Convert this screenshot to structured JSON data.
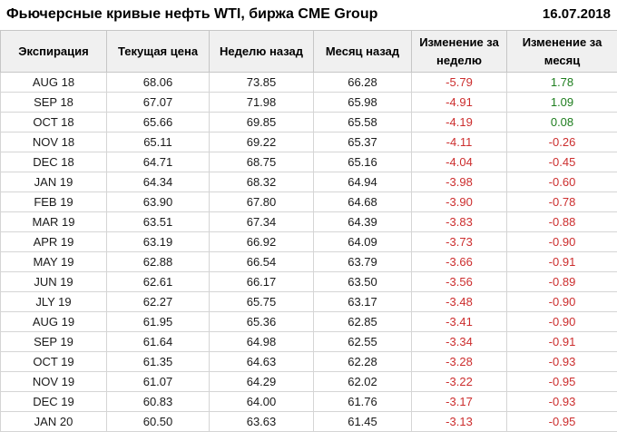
{
  "colors": {
    "positive": "#1e7d1e",
    "negative": "#cc2e2e",
    "header_bg": "#f0f0f0",
    "border": "#c6c6c6",
    "row_border": "#d5d5d5",
    "text": "#1a1a1a"
  },
  "chart_data": {
    "type": "table",
    "title": "Фьючерсные кривые нефть WTI, биржа CME Group",
    "date": "16.07.2018",
    "columns": [
      "Экспирация",
      "Текущая цена",
      "Неделю назад",
      "Месяц назад",
      "Изменение за неделю",
      "Изменение за месяц"
    ],
    "cell_names": [
      "cell-expiration",
      "cell-current-price",
      "cell-week-ago",
      "cell-month-ago",
      "cell-week-change",
      "cell-month-change"
    ],
    "change_columns": [
      4,
      5
    ],
    "rows": [
      [
        "AUG 18",
        "68.06",
        "73.85",
        "66.28",
        "-5.79",
        "1.78"
      ],
      [
        "SEP 18",
        "67.07",
        "71.98",
        "65.98",
        "-4.91",
        "1.09"
      ],
      [
        "OCT 18",
        "65.66",
        "69.85",
        "65.58",
        "-4.19",
        "0.08"
      ],
      [
        "NOV 18",
        "65.11",
        "69.22",
        "65.37",
        "-4.11",
        "-0.26"
      ],
      [
        "DEC 18",
        "64.71",
        "68.75",
        "65.16",
        "-4.04",
        "-0.45"
      ],
      [
        "JAN 19",
        "64.34",
        "68.32",
        "64.94",
        "-3.98",
        "-0.60"
      ],
      [
        "FEB 19",
        "63.90",
        "67.80",
        "64.68",
        "-3.90",
        "-0.78"
      ],
      [
        "MAR 19",
        "63.51",
        "67.34",
        "64.39",
        "-3.83",
        "-0.88"
      ],
      [
        "APR 19",
        "63.19",
        "66.92",
        "64.09",
        "-3.73",
        "-0.90"
      ],
      [
        "MAY 19",
        "62.88",
        "66.54",
        "63.79",
        "-3.66",
        "-0.91"
      ],
      [
        "JUN 19",
        "62.61",
        "66.17",
        "63.50",
        "-3.56",
        "-0.89"
      ],
      [
        "JLY 19",
        "62.27",
        "65.75",
        "63.17",
        "-3.48",
        "-0.90"
      ],
      [
        "AUG 19",
        "61.95",
        "65.36",
        "62.85",
        "-3.41",
        "-0.90"
      ],
      [
        "SEP 19",
        "61.64",
        "64.98",
        "62.55",
        "-3.34",
        "-0.91"
      ],
      [
        "OCT 19",
        "61.35",
        "64.63",
        "62.28",
        "-3.28",
        "-0.93"
      ],
      [
        "NOV 19",
        "61.07",
        "64.29",
        "62.02",
        "-3.22",
        "-0.95"
      ],
      [
        "DEC 19",
        "60.83",
        "64.00",
        "61.76",
        "-3.17",
        "-0.93"
      ],
      [
        "JAN 20",
        "60.50",
        "63.63",
        "61.45",
        "-3.13",
        "-0.95"
      ]
    ]
  }
}
